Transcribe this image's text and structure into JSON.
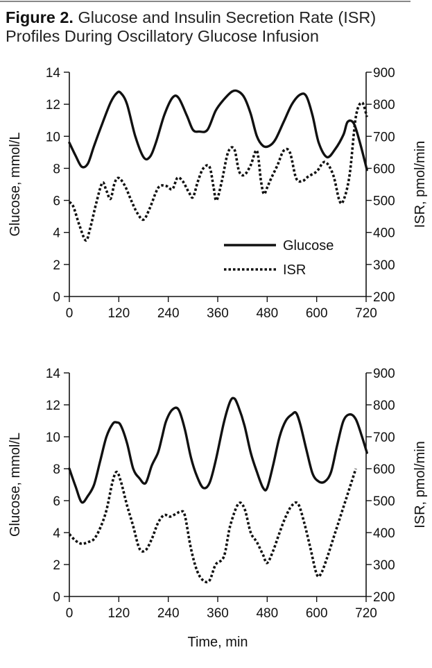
{
  "figure": {
    "label": "Figure 2.",
    "title": "Glucose and Insulin Secretion Rate (ISR) Profiles During Oscillatory Glucose Infusion"
  },
  "colors": {
    "line": "#111111",
    "axis": "#111111"
  },
  "chart_data": [
    {
      "type": "line",
      "title": "",
      "xlabel": "",
      "ylabel": "Glucose, mmol/L",
      "y2label": "ISR, pmol/min",
      "xlim": [
        0,
        720
      ],
      "ylim": [
        0,
        14
      ],
      "y2lim": [
        200,
        900
      ],
      "xticks": [
        0,
        120,
        240,
        360,
        480,
        600,
        720
      ],
      "yticks": [
        0,
        2,
        4,
        6,
        8,
        10,
        12,
        14
      ],
      "y2ticks": [
        200,
        300,
        400,
        500,
        600,
        700,
        800,
        900
      ],
      "legend": {
        "placement": "center-right",
        "glucose": "Glucose",
        "isr": "ISR"
      },
      "series": [
        {
          "name": "Glucose",
          "axis": "left",
          "style": "solid",
          "x": [
            0,
            15,
            30,
            45,
            60,
            80,
            100,
            115,
            125,
            140,
            160,
            180,
            195,
            210,
            230,
            250,
            265,
            285,
            300,
            315,
            335,
            355,
            375,
            395,
            410,
            425,
            440,
            455,
            470,
            485,
            500,
            520,
            540,
            560,
            575,
            590,
            605,
            625,
            645,
            665,
            675,
            690,
            705,
            722
          ],
          "y": [
            9.6,
            8.8,
            8.1,
            8.3,
            9.4,
            10.8,
            12.1,
            12.7,
            12.7,
            12.0,
            10.0,
            8.7,
            8.7,
            9.6,
            11.3,
            12.4,
            12.4,
            11.3,
            10.4,
            10.3,
            10.4,
            11.6,
            12.3,
            12.8,
            12.8,
            12.4,
            11.4,
            10.0,
            9.4,
            9.4,
            9.8,
            10.9,
            12.0,
            12.6,
            12.5,
            11.3,
            9.6,
            8.7,
            9.2,
            10.1,
            10.9,
            10.8,
            9.6,
            7.9
          ]
        },
        {
          "name": "ISR",
          "axis": "right",
          "style": "dotted",
          "x": [
            0,
            10,
            25,
            40,
            50,
            65,
            80,
            90,
            100,
            110,
            120,
            135,
            150,
            165,
            180,
            195,
            210,
            220,
            235,
            250,
            262,
            275,
            290,
            300,
            312,
            325,
            340,
            350,
            357,
            370,
            385,
            400,
            412,
            425,
            440,
            455,
            465,
            472,
            480,
            490,
            505,
            520,
            535,
            550,
            565,
            580,
            600,
            620,
            640,
            655,
            665,
            680,
            695,
            710,
            722
          ],
          "y": [
            495,
            480,
            420,
            375,
            410,
            490,
            555,
            530,
            505,
            555,
            570,
            545,
            500,
            460,
            440,
            475,
            525,
            545,
            545,
            535,
            570,
            560,
            525,
            510,
            560,
            600,
            605,
            540,
            500,
            560,
            650,
            660,
            590,
            580,
            610,
            655,
            560,
            520,
            540,
            570,
            610,
            655,
            650,
            570,
            560,
            575,
            590,
            620,
            580,
            500,
            500,
            580,
            760,
            805,
            760
          ]
        }
      ]
    },
    {
      "type": "line",
      "title": "",
      "xlabel": "Time, min",
      "ylabel": "Glucose, mmol/L",
      "y2label": "ISR, pmol/min",
      "xlim": [
        0,
        720
      ],
      "ylim": [
        0,
        14
      ],
      "y2lim": [
        200,
        900
      ],
      "xticks": [
        0,
        120,
        240,
        360,
        480,
        600,
        720
      ],
      "yticks": [
        0,
        2,
        4,
        6,
        8,
        10,
        12,
        14
      ],
      "y2ticks": [
        200,
        300,
        400,
        500,
        600,
        700,
        800,
        900
      ],
      "series": [
        {
          "name": "Glucose",
          "axis": "left",
          "style": "solid",
          "x": [
            0,
            15,
            30,
            45,
            60,
            75,
            90,
            105,
            115,
            125,
            140,
            155,
            170,
            185,
            200,
            215,
            225,
            235,
            250,
            265,
            280,
            295,
            310,
            325,
            340,
            355,
            375,
            390,
            400,
            410,
            425,
            440,
            455,
            470,
            480,
            495,
            510,
            525,
            540,
            550,
            560,
            575,
            590,
            605,
            620,
            635,
            650,
            665,
            680,
            695,
            710,
            722
          ],
          "y": [
            8.0,
            6.9,
            5.9,
            6.3,
            7.0,
            8.5,
            10.0,
            10.8,
            10.9,
            10.7,
            9.6,
            8.0,
            7.4,
            7.1,
            8.2,
            9.0,
            10.0,
            11.0,
            11.7,
            11.7,
            10.5,
            8.7,
            7.5,
            6.8,
            7.1,
            8.5,
            10.9,
            12.2,
            12.4,
            11.9,
            10.7,
            9.0,
            7.8,
            6.8,
            6.8,
            8.3,
            10.0,
            11.0,
            11.4,
            11.5,
            10.8,
            9.2,
            7.7,
            7.2,
            7.2,
            7.8,
            9.5,
            11.0,
            11.4,
            11.1,
            10.0,
            9.0
          ]
        },
        {
          "name": "ISR",
          "axis": "right",
          "style": "dotted",
          "x": [
            0,
            15,
            30,
            45,
            60,
            75,
            90,
            105,
            115,
            125,
            140,
            155,
            170,
            185,
            200,
            215,
            230,
            245,
            260,
            270,
            280,
            295,
            310,
            325,
            340,
            355,
            375,
            390,
            410,
            425,
            440,
            455,
            470,
            480,
            495,
            510,
            525,
            540,
            555,
            570,
            585,
            600,
            610,
            625,
            640,
            655,
            670,
            685,
            695
          ],
          "y": [
            395,
            375,
            365,
            370,
            380,
            415,
            470,
            560,
            590,
            560,
            485,
            420,
            350,
            345,
            380,
            430,
            455,
            450,
            460,
            465,
            455,
            350,
            280,
            250,
            250,
            300,
            325,
            420,
            490,
            475,
            400,
            370,
            330,
            305,
            345,
            400,
            450,
            485,
            490,
            430,
            350,
            270,
            270,
            320,
            380,
            440,
            500,
            560,
            600
          ]
        }
      ]
    }
  ]
}
